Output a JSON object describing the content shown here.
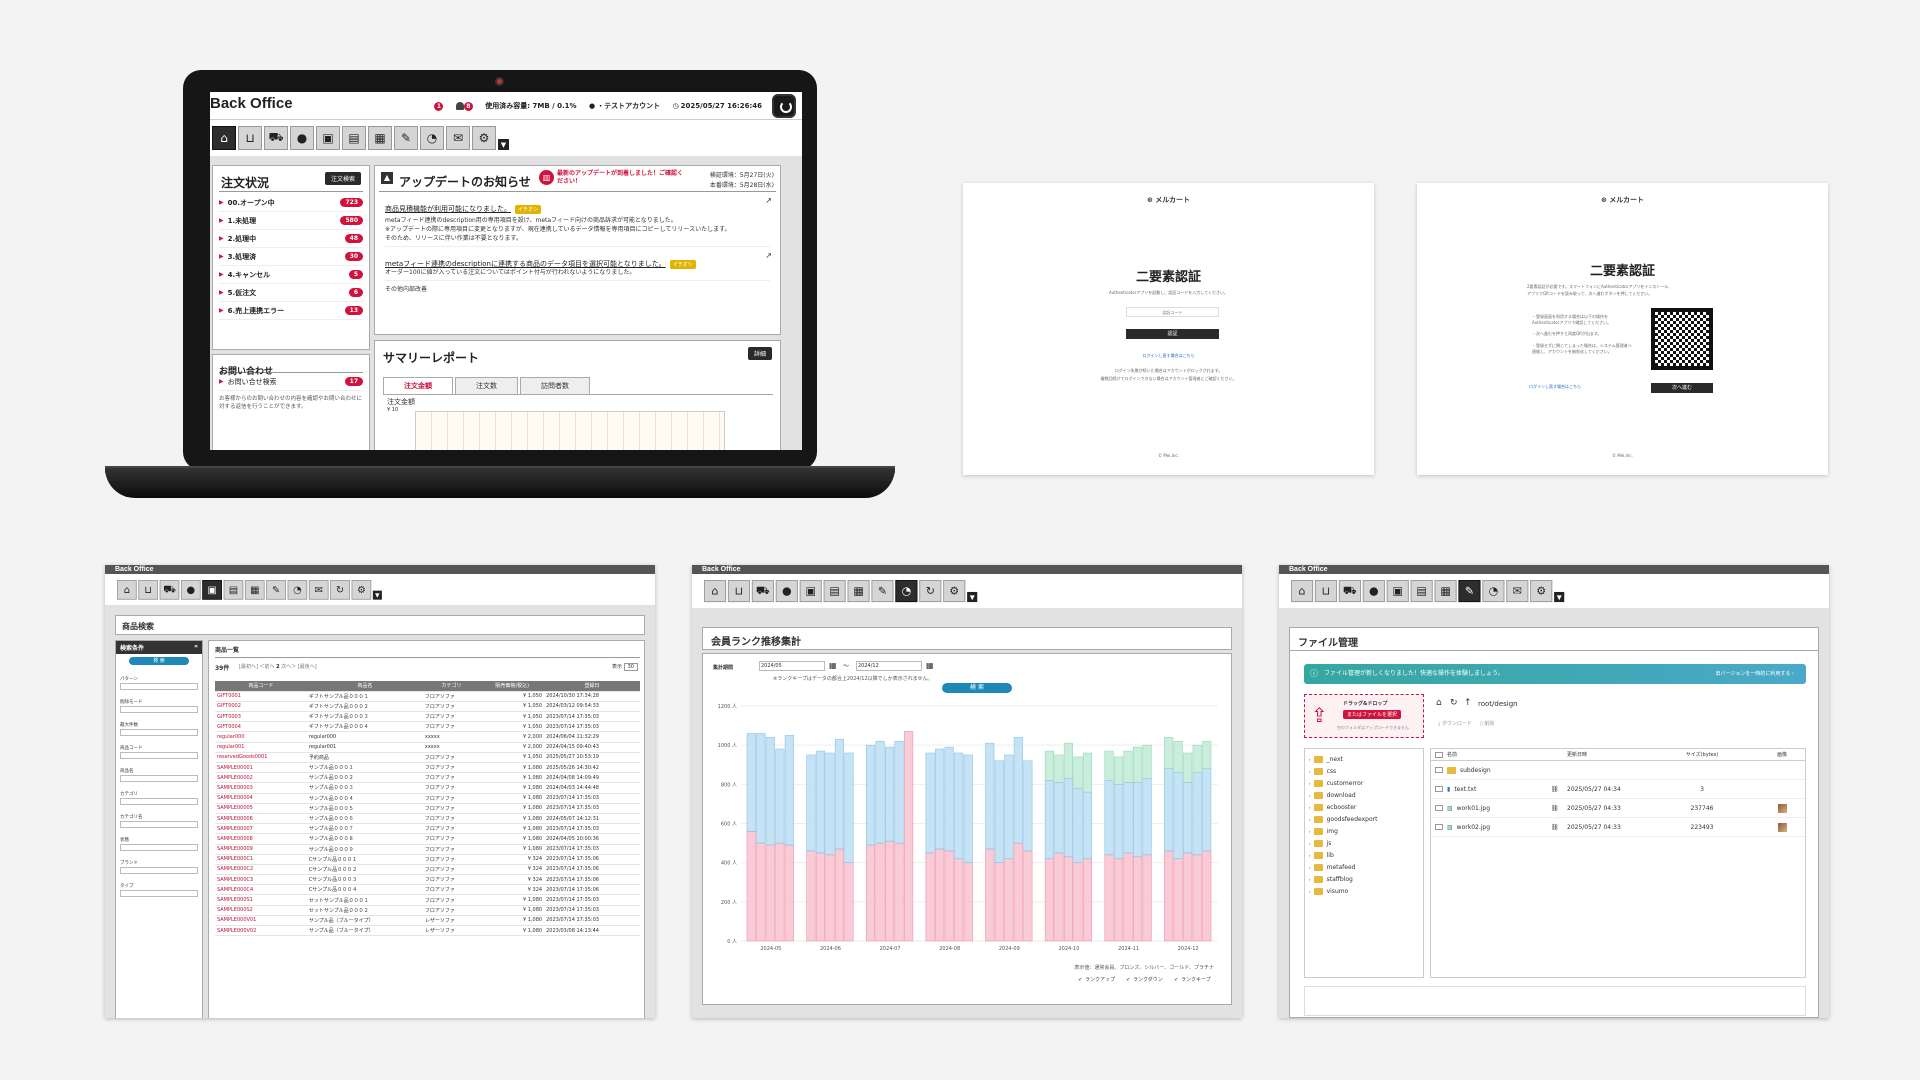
{
  "laptop": {
    "app_title": "Back Office",
    "usage": "使用済み容量: 7MB / 0.1%",
    "account": "・テストアカウント",
    "datetime": "2025/05/27 16:26:46",
    "notif_count": "8",
    "info_count": "1",
    "orders": {
      "title": "注文状況",
      "search_btn": "注文検索",
      "items": [
        {
          "label": "00.オープン中",
          "count": "723"
        },
        {
          "label": "1.未処理",
          "count": "580"
        },
        {
          "label": "2.処理中",
          "count": "48"
        },
        {
          "label": "3.処理済",
          "count": "30"
        },
        {
          "label": "4.キャンセル",
          "count": "5"
        },
        {
          "label": "5.仮注文",
          "count": "6"
        },
        {
          "label": "6.売上連携エラー",
          "count": "13"
        }
      ]
    },
    "inquiry": {
      "title": "お問い合わせ",
      "item": "お問い合せ検索",
      "count": "17",
      "note": "お客様からのお問い合わせの内容を確認やお問い合わせに対する返信を行うことができます。"
    },
    "updates": {
      "title": "アップデートのお知らせ",
      "badge": "最新のアップデートが到着しました！ご確認ください！",
      "env1": "検証環境：5月27日(火)",
      "env2": "本番環境：5月28日(水)",
      "l1": "商品見積機能が利用可能になりました。",
      "tag": "イチオシ",
      "p1": "metaフィード連携のdescription用の専用項目を設け、metaフィード向けの商品訴求が可能となりました。",
      "p2": "※アップデートの際に専用項目に変更となりますが、現在連携しているデータ情報を専用項目にコピーしてリリースいたします。",
      "p3": "そのため、リリースに伴い作業は不要となります。",
      "l2": "metaフィード連携のdescriptionに連携する商品のデータ項目を選択可能となりました。",
      "p4": "オーダー100に値が入っている注文についてはポイント付与が行われないようになりました。",
      "p5": "その他内部改善"
    },
    "summary": {
      "title": "サマリーレポート",
      "btn": "詳細",
      "tabs": [
        "注文金額",
        "注文数",
        "訪問者数"
      ],
      "label": "注文金額",
      "yunit": "¥ 10"
    }
  },
  "auth1": {
    "logo": "メルカート",
    "title": "二要素認証",
    "desc": "Authenticatorアプリを起動し、認証コードを入力してください。",
    "placeholder": "認証コード",
    "btn": "認証",
    "link": "ログインし直す場合はこちら",
    "note1": "ログイン失敗が続いた場合はアカウントがロックされます。",
    "note2": "複数回続けてログインできない場合はアカウント管理者にご確認ください。",
    "footer": "© Mei,Inc."
  },
  "auth2": {
    "logo": "メルカート",
    "title": "二要素認証",
    "desc1": "2要素認証が必要です。スマートフォンにAuthenticatorアプリをインストール、",
    "desc2": "アプリでQRコードを読み取って、次へ進むボタンを押してください。",
    "b1": "・登録画面を利用する場合は以下の操作をAuthenticatorアプリで確認してください。",
    "b2": "・次へ進むを押すと再度QRが出ます。",
    "b3": "・登録せずに閉じてしまった場合は、システム管理者へ連絡し、アカウントを無効化してください。",
    "link": "ログインし直す場合はこちら",
    "btn": "次へ進む",
    "footer": "© Mei,Inc."
  },
  "products": {
    "app": "Back Office",
    "title": "商品検索",
    "cond": "検索条件",
    "search": "検 索",
    "list_title": "商品一覧",
    "count": "39件",
    "page": "2",
    "disp": "表示",
    "disp_val": "30",
    "side": [
      "パターン",
      "削除モード",
      "最大件数",
      "商品コード",
      "商品名",
      "カテゴリ",
      "カテゴリ名",
      "状態",
      "ブランド",
      "タイプ"
    ],
    "cols": [
      "商品コード",
      "商品名",
      "カテゴリ",
      "販売価格(税込)",
      "登録日"
    ],
    "rows": [
      [
        "GIFT0001",
        "ギフトサンプル品０００１",
        "フロアソファ",
        "¥ 1,050",
        "2024/10/30 17:34:28"
      ],
      [
        "GIFT0002",
        "ギフトサンプル品０００２",
        "フロアソファ",
        "¥ 1,050",
        "2024/03/12 09:54:33"
      ],
      [
        "GIFT0003",
        "ギフトサンプル品０００３",
        "フロアソファ",
        "¥ 1,050",
        "2023/07/14 17:35:03"
      ],
      [
        "GIFT0004",
        "ギフトサンプル品０００４",
        "フロアソファ",
        "¥ 1,050",
        "2023/07/14 17:35:03"
      ],
      [
        "regular000",
        "regular000",
        "xxxxx",
        "¥ 2,000",
        "2024/06/04 11:32:29"
      ],
      [
        "regular001",
        "regular001",
        "xxxxx",
        "¥ 2,000",
        "2024/04/15 09:40:43"
      ],
      [
        "reservedGoods0001",
        "予約商品",
        "フロアソファ",
        "¥ 1,050",
        "2025/05/27 10:53:19"
      ],
      [
        "SAMPLE00001",
        "サンプル品０００１",
        "フロアソファ",
        "¥ 1,080",
        "2025/05/26 14:30:42"
      ],
      [
        "SAMPLE00002",
        "サンプル品０００２",
        "フロアソファ",
        "¥ 1,080",
        "2024/04/08 14:09:49"
      ],
      [
        "SAMPLE00003",
        "サンプル品０００３",
        "フロアソファ",
        "¥ 1,080",
        "2024/04/03 14:44:48"
      ],
      [
        "SAMPLE00004",
        "サンプル品０００４",
        "フロアソファ",
        "¥ 1,080",
        "2023/07/14 17:35:03"
      ],
      [
        "SAMPLE00005",
        "サンプル品０００５",
        "フロアソファ",
        "¥ 1,080",
        "2023/07/14 17:35:03"
      ],
      [
        "SAMPLE00006",
        "サンプル品０００６",
        "フロアソファ",
        "¥ 1,080",
        "2024/05/07 14:12:31"
      ],
      [
        "SAMPLE00007",
        "サンプル品０００７",
        "フロアソファ",
        "¥ 1,080",
        "2023/07/14 17:35:03"
      ],
      [
        "SAMPLE00008",
        "サンプル品０００８",
        "フロアソファ",
        "¥ 1,080",
        "2024/04/05 10:00:36"
      ],
      [
        "SAMPLE00009",
        "サンプル品０００９",
        "フロアソファ",
        "¥ 1,080",
        "2023/07/14 17:35:03"
      ],
      [
        "SAMPLE000C1",
        "Cサンプル品０００１",
        "フロアソファ",
        "¥ 324",
        "2023/07/14 17:35:06"
      ],
      [
        "SAMPLE000C2",
        "Cサンプル品０００２",
        "フロアソファ",
        "¥ 324",
        "2023/07/14 17:35:06"
      ],
      [
        "SAMPLE000C3",
        "Cサンプル品０００３",
        "フロアソファ",
        "¥ 324",
        "2023/07/14 17:35:06"
      ],
      [
        "SAMPLE000C4",
        "Cサンプル品０００４",
        "フロアソファ",
        "¥ 324",
        "2023/07/14 17:35:06"
      ],
      [
        "SAMPLE000S1",
        "セットサンプル品０００１",
        "フロアソファ",
        "¥ 1,080",
        "2023/07/14 17:35:03"
      ],
      [
        "SAMPLE000S2",
        "セットサンプル品０００２",
        "フロアソファ",
        "¥ 1,080",
        "2023/07/14 17:35:03"
      ],
      [
        "SAMPLE000V01",
        "サンプル品（ブルータイプ）",
        "レザーソファ",
        "¥ 1,080",
        "2023/07/14 17:35:03"
      ],
      [
        "SAMPLE000V02",
        "サンプル品（ブルータイプ）",
        "レザーソファ",
        "¥ 1,080",
        "2023/03/08 14:13:44"
      ]
    ]
  },
  "rank": {
    "app": "Back Office",
    "title": "会員ランク推移集計",
    "period_label": "集計期間",
    "from": "2024/05",
    "to": "2024/12",
    "sep": "〜",
    "note": "※ランクキープはデータの都合上2024/12以降でしか表示されません。",
    "search": "検 索",
    "legend_note": "表示値：通常会員、ブロンズ、シルバー、ゴールド、プラチナ",
    "legend": [
      "ランクアップ",
      "ランクダウン",
      "ランクキープ"
    ]
  },
  "chart_data": {
    "type": "bar",
    "title": "会員ランク推移集計",
    "categories": [
      "2024-05",
      "2024-06",
      "2024-07",
      "2024-08",
      "2024-09",
      "2024-10",
      "2024-11",
      "2024-12"
    ],
    "ylim": [
      0,
      1200
    ],
    "yticks": [
      "0 人",
      "200 人",
      "400 人",
      "600 人",
      "800 人",
      "1000 人",
      "1200 人"
    ],
    "series": [
      {
        "name": "ランクアップ",
        "values": [
          [
            560,
            500,
            490,
            500,
            490
          ],
          [
            460,
            450,
            440,
            470,
            400
          ],
          [
            490,
            500,
            510,
            500,
            1070
          ],
          [
            450,
            470,
            460,
            420,
            400
          ],
          [
            470,
            400,
            420,
            500,
            460
          ],
          [
            420,
            450,
            430,
            400,
            420
          ],
          [
            440,
            420,
            450,
            430,
            440
          ],
          [
            460,
            420,
            450,
            440,
            460
          ]
        ]
      },
      {
        "name": "ランクダウン",
        "values": [
          [
            500,
            560,
            550,
            480,
            560
          ],
          [
            490,
            520,
            520,
            560,
            560
          ],
          [
            510,
            520,
            480,
            520,
            0
          ],
          [
            510,
            510,
            530,
            540,
            550
          ],
          [
            540,
            520,
            530,
            540,
            460
          ],
          [
            400,
            360,
            400,
            380,
            340
          ],
          [
            380,
            380,
            360,
            380,
            390
          ],
          [
            420,
            440,
            360,
            420,
            420
          ]
        ]
      },
      {
        "name": "ランクキープ",
        "values": [
          [
            0,
            0,
            0,
            0,
            0
          ],
          [
            0,
            0,
            0,
            0,
            0
          ],
          [
            0,
            0,
            0,
            0,
            0
          ],
          [
            0,
            0,
            0,
            0,
            0
          ],
          [
            0,
            0,
            0,
            0,
            0
          ],
          [
            150,
            140,
            180,
            160,
            200
          ],
          [
            150,
            140,
            160,
            180,
            170
          ],
          [
            160,
            160,
            150,
            140,
            140
          ]
        ]
      }
    ]
  },
  "files": {
    "app": "Back Office",
    "title": "ファイル管理",
    "banner": "ファイル管理が新しくなりました！快適な操作を体験しましょう。",
    "banner_link": "旧バージョンを一時的に利用する ›",
    "dnd": "ドラッグ&ドロップ",
    "dnd_btn": "またはファイルを選択",
    "dnd_note": "空のフォルダはアップロードできません",
    "path": "root/design",
    "download": "ダウンロード",
    "delete": "削除",
    "tree": [
      "_next",
      "css",
      "customerror",
      "download",
      "ecbooster",
      "goodsfeedexport",
      "img",
      "js",
      "lib",
      "metafeed",
      "staffblog",
      "visumo"
    ],
    "cols": [
      "名前",
      "更新日時",
      "サイズ(bytes)",
      "画像"
    ],
    "rows": [
      {
        "name": "subdesign",
        "date": "",
        "size": ""
      },
      {
        "name": "text.txt",
        "date": "2025/05/27 04:34",
        "size": "3"
      },
      {
        "name": "work01.jpg",
        "date": "2025/05/27 04:33",
        "size": "237746"
      },
      {
        "name": "work02.jpg",
        "date": "2025/05/27 04:33",
        "size": "223493"
      }
    ]
  }
}
